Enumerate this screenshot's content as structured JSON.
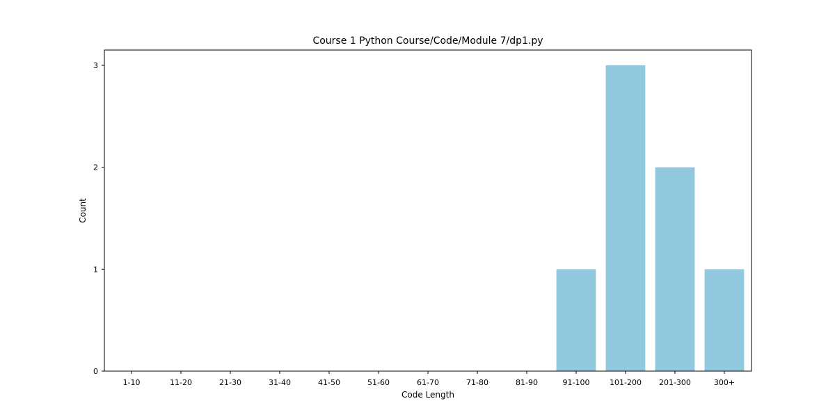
{
  "chart_data": {
    "type": "bar",
    "title": "Course 1 Python Course/Code/Module 7/dp1.py",
    "xlabel": "Code Length",
    "ylabel": "Count",
    "categories": [
      "1-10",
      "11-20",
      "21-30",
      "31-40",
      "41-50",
      "51-60",
      "61-70",
      "71-80",
      "81-90",
      "91-100",
      "101-200",
      "201-300",
      "300+"
    ],
    "values": [
      0,
      0,
      0,
      0,
      0,
      0,
      0,
      0,
      0,
      1,
      3,
      2,
      1
    ],
    "ylim": [
      0,
      3.15
    ],
    "yticks": [
      "0",
      "1",
      "2",
      "3"
    ],
    "bar_color": "#92c9de",
    "grid": false,
    "legend": "none"
  }
}
